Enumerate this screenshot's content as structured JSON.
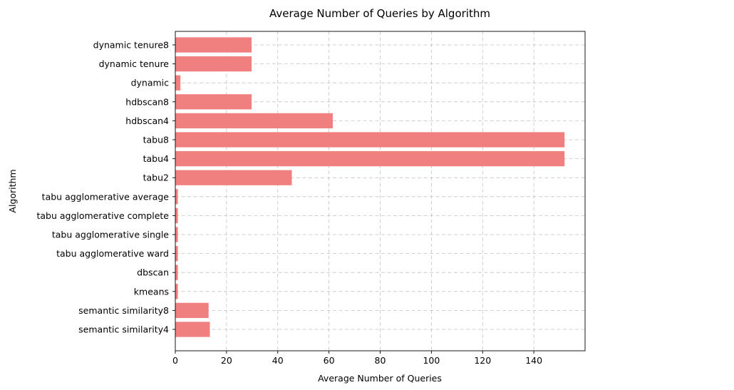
{
  "chart_data": {
    "type": "bar",
    "orientation": "horizontal",
    "title": "Average Number of Queries by Algorithm",
    "xlabel": "Average Number of Queries",
    "ylabel": "Algorithm",
    "categories": [
      "semantic similarity4",
      "semantic similarity8",
      "kmeans",
      "dbscan",
      "tabu agglomerative ward",
      "tabu agglomerative single",
      "tabu agglomerative complete",
      "tabu agglomerative average",
      "tabu2",
      "tabu4",
      "tabu8",
      "hdbscan4",
      "hdbscan8",
      "dynamic",
      "dynamic tenure",
      "dynamic tenure8"
    ],
    "values": [
      13.5,
      13,
      1,
      1,
      1,
      1,
      1,
      1,
      45.5,
      152,
      152,
      61.5,
      29.8,
      2,
      29.8,
      29.8
    ],
    "xlim": [
      0,
      160
    ],
    "xticks": [
      0,
      20,
      40,
      60,
      80,
      100,
      120,
      140
    ],
    "xtick_labels": [
      "0",
      "20",
      "40",
      "60",
      "80",
      "100",
      "120",
      "140"
    ],
    "grid": true,
    "bar_color": "#f08080"
  }
}
